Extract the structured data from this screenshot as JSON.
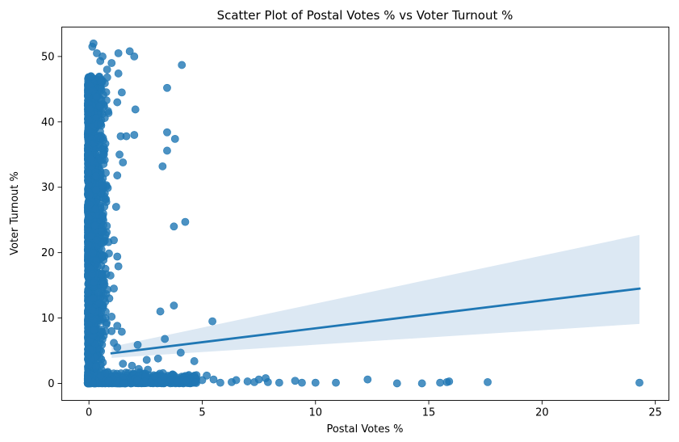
{
  "chart_data": {
    "type": "scatter",
    "title": "Scatter Plot of Postal Votes % vs Voter Turnout %",
    "xlabel": "Postal Votes %",
    "ylabel": "Voter Turnout %",
    "xlim": [
      -1.2,
      25.6
    ],
    "ylim": [
      -2.6,
      54.5
    ],
    "x_ticks": [
      0,
      5,
      10,
      15,
      20,
      25
    ],
    "y_ticks": [
      0,
      10,
      20,
      30,
      40,
      50
    ],
    "grid": false,
    "point_color": "#1f77b4",
    "band_color": "#dce8f3",
    "regression": {
      "x_start": 1.0,
      "x_end": 24.3,
      "y_start": 4.6,
      "y_end": 14.5,
      "ci_upper_start": 5.6,
      "ci_upper_end": 22.7,
      "ci_lower_start": 3.9,
      "ci_lower_end": 9.1
    },
    "points_outliers": [
      [
        0.15,
        51.5
      ],
      [
        0.2,
        52.0
      ],
      [
        0.35,
        50.5
      ],
      [
        0.6,
        50.0
      ],
      [
        1.3,
        50.5
      ],
      [
        1.8,
        50.8
      ],
      [
        2.0,
        50.0
      ],
      [
        4.1,
        48.7
      ],
      [
        1.0,
        49.0
      ],
      [
        1.3,
        47.4
      ],
      [
        0.5,
        49.3
      ],
      [
        0.8,
        48.0
      ],
      [
        3.45,
        45.2
      ],
      [
        1.45,
        44.5
      ],
      [
        2.05,
        41.9
      ],
      [
        1.25,
        43.0
      ],
      [
        3.45,
        38.4
      ],
      [
        3.8,
        37.4
      ],
      [
        2.0,
        38.0
      ],
      [
        1.4,
        37.8
      ],
      [
        1.65,
        37.8
      ],
      [
        3.45,
        35.6
      ],
      [
        1.35,
        35.0
      ],
      [
        3.25,
        33.2
      ],
      [
        1.5,
        33.8
      ],
      [
        1.25,
        31.8
      ],
      [
        4.25,
        24.7
      ],
      [
        3.75,
        24.0
      ],
      [
        1.2,
        27.0
      ],
      [
        1.1,
        21.9
      ],
      [
        1.25,
        19.4
      ],
      [
        1.3,
        17.9
      ],
      [
        1.1,
        14.5
      ],
      [
        3.75,
        11.9
      ],
      [
        3.15,
        11.0
      ],
      [
        5.45,
        9.5
      ],
      [
        1.0,
        10.2
      ],
      [
        1.45,
        7.9
      ],
      [
        1.25,
        8.8
      ],
      [
        3.35,
        6.8
      ],
      [
        2.15,
        5.9
      ],
      [
        4.05,
        4.7
      ],
      [
        1.25,
        5.5
      ],
      [
        2.55,
        3.6
      ],
      [
        3.05,
        3.8
      ],
      [
        4.65,
        3.4
      ],
      [
        1.5,
        3.0
      ],
      [
        1.9,
        2.7
      ],
      [
        2.2,
        2.2
      ],
      [
        2.6,
        2.1
      ],
      [
        1.1,
        6.2
      ],
      [
        1.0,
        8.0
      ],
      [
        0.9,
        13.0
      ],
      [
        0.95,
        16.5
      ]
    ],
    "points_tail": [
      [
        5.2,
        1.2
      ],
      [
        5.0,
        0.5
      ],
      [
        5.5,
        0.6
      ],
      [
        5.8,
        0.1
      ],
      [
        6.3,
        0.2
      ],
      [
        6.5,
        0.5
      ],
      [
        7.0,
        0.3
      ],
      [
        7.3,
        0.2
      ],
      [
        7.5,
        0.6
      ],
      [
        7.8,
        0.8
      ],
      [
        7.9,
        0.2
      ],
      [
        8.4,
        0.1
      ],
      [
        9.1,
        0.4
      ],
      [
        9.4,
        0.1
      ],
      [
        10.0,
        0.1
      ],
      [
        10.9,
        0.1
      ],
      [
        12.3,
        0.6
      ],
      [
        13.6,
        0.0
      ],
      [
        14.7,
        0.0
      ],
      [
        15.5,
        0.1
      ],
      [
        15.8,
        0.2
      ],
      [
        15.9,
        0.3
      ],
      [
        17.6,
        0.2
      ],
      [
        24.3,
        0.1
      ],
      [
        4.3,
        0.4
      ],
      [
        4.7,
        0.2
      ],
      [
        3.9,
        0.3
      ],
      [
        3.6,
        0.5
      ],
      [
        3.3,
        1.0
      ],
      [
        2.9,
        1.1
      ]
    ]
  }
}
